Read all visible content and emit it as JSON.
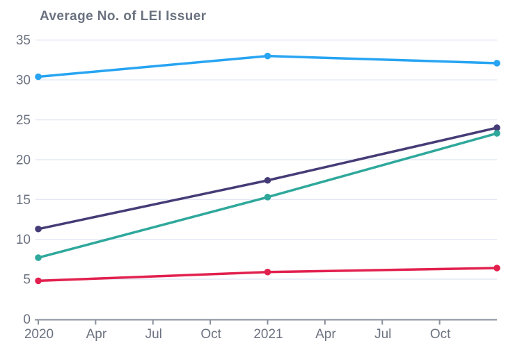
{
  "chart": {
    "title": "Average No. of LEI Issuer"
  },
  "chart_data": {
    "type": "line",
    "title": "Average No. of LEI Issuer",
    "xlabel": "",
    "ylabel": "",
    "x_tick_labels": [
      "2020",
      "Apr",
      "Jul",
      "Oct",
      "2021",
      "Apr",
      "Jul",
      "Oct"
    ],
    "x_tick_positions": [
      0,
      1,
      2,
      3,
      4,
      5,
      6,
      7
    ],
    "x_range": [
      0,
      8
    ],
    "x_point_positions": [
      0,
      4,
      8
    ],
    "x_point_meaning": [
      "2020",
      "2021",
      "end of 2021"
    ],
    "y_ticks": [
      0,
      5,
      10,
      15,
      20,
      25,
      30,
      35
    ],
    "ylim": [
      0,
      35
    ],
    "grid": true,
    "legend": false,
    "marker": "circle",
    "series": [
      {
        "name": "light-blue",
        "color": "#27a4f2",
        "values": [
          30.4,
          33.0,
          32.1
        ]
      },
      {
        "name": "dark-navy",
        "color": "#453c77",
        "values": [
          11.3,
          17.4,
          24.0
        ]
      },
      {
        "name": "teal",
        "color": "#2fa89c",
        "values": [
          7.7,
          15.3,
          23.3
        ]
      },
      {
        "name": "crimson",
        "color": "#e2204e",
        "values": [
          4.8,
          5.9,
          6.4
        ]
      }
    ]
  },
  "colors": {
    "background": "#ffffff",
    "label_text": "#6b7280",
    "gridline": "#e4e8f4",
    "axis_line": "#8a909b"
  }
}
